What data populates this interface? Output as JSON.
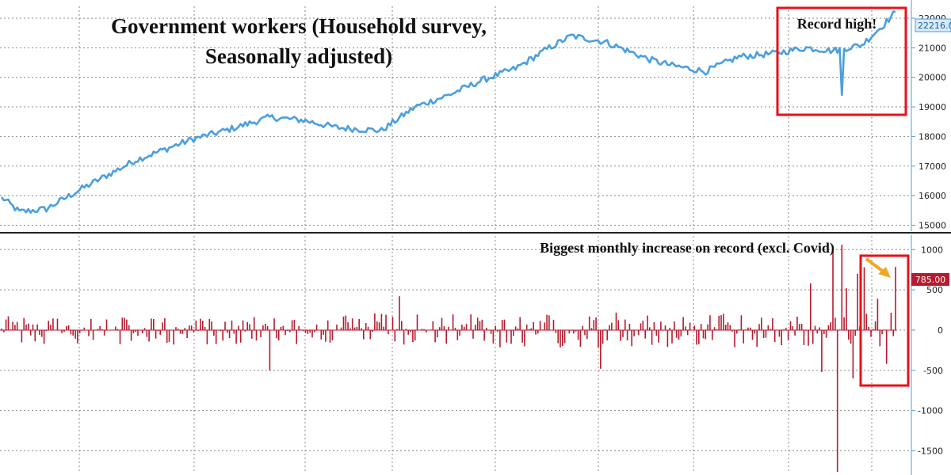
{
  "colors": {
    "top_line": "#4a9fe0",
    "bottom_bars": "#b51a2e",
    "highlight_box": "#e8101a",
    "arrow": "#f0a824",
    "grid": "#888888",
    "divider": "#222222"
  },
  "chart_data": [
    {
      "type": "line",
      "title": "Government workers (Household survey, Seasonally adjusted)",
      "title_lines": [
        "Government workers (Household survey,",
        "Seasonally adjusted)"
      ],
      "ylim": [
        14800,
        22400
      ],
      "y_ticks": [
        15000,
        16000,
        17000,
        18000,
        19000,
        20000,
        21000,
        22000
      ],
      "y_tick_labels": [
        "15000",
        "16000",
        "17000",
        "18000",
        "19000",
        "20000",
        "21000",
        "22000"
      ],
      "grid": true,
      "last_value_label": "22216.0",
      "last_value": 22216,
      "annotation": "Record high!",
      "highlight_index_range": [
        376,
        400
      ],
      "n_points": 401,
      "anchors_index": [
        0,
        8,
        20,
        35,
        60,
        85,
        100,
        120,
        135,
        150,
        170,
        185,
        200,
        215,
        230,
        245,
        255,
        270,
        290,
        300,
        315,
        330,
        345,
        360,
        372,
        385,
        395,
        400
      ],
      "anchors_value": [
        15950,
        15450,
        15550,
        16200,
        17200,
        17900,
        18200,
        18650,
        18550,
        18300,
        18200,
        19000,
        19400,
        19900,
        20300,
        21000,
        21400,
        21200,
        20600,
        20400,
        20200,
        20700,
        20800,
        21000,
        20900,
        21100,
        21800,
        22216
      ],
      "events": [
        {
          "index": 376,
          "value": 19400
        }
      ],
      "noise": 110
    },
    {
      "type": "bar",
      "ylim": [
        -1780,
        1150
      ],
      "y_ticks": [
        -1500,
        -1000,
        -500,
        0,
        500,
        1000
      ],
      "y_tick_labels": [
        "-1500",
        "-1000",
        "-500",
        "0",
        "500",
        "1000"
      ],
      "grid": true,
      "last_value_label": "785.00",
      "last_value": 785,
      "annotation": "Biggest monthly increase on record (excl. Covid)",
      "highlight_index_range": [
        383,
        400
      ],
      "n_points": 401,
      "amplitude": 180,
      "spikes": [
        {
          "index": 120,
          "value": -500
        },
        {
          "index": 178,
          "value": 420
        },
        {
          "index": 268,
          "value": -480
        },
        {
          "index": 362,
          "value": 580
        },
        {
          "index": 367,
          "value": -520
        },
        {
          "index": 372,
          "value": 1050
        },
        {
          "index": 374,
          "value": -1760
        },
        {
          "index": 376,
          "value": 1060
        },
        {
          "index": 378,
          "value": 520
        },
        {
          "index": 381,
          "value": -600
        },
        {
          "index": 383,
          "value": 700
        },
        {
          "index": 386,
          "value": 780
        },
        {
          "index": 392,
          "value": 390
        },
        {
          "index": 396,
          "value": -420
        },
        {
          "index": 400,
          "value": 785
        }
      ]
    }
  ]
}
